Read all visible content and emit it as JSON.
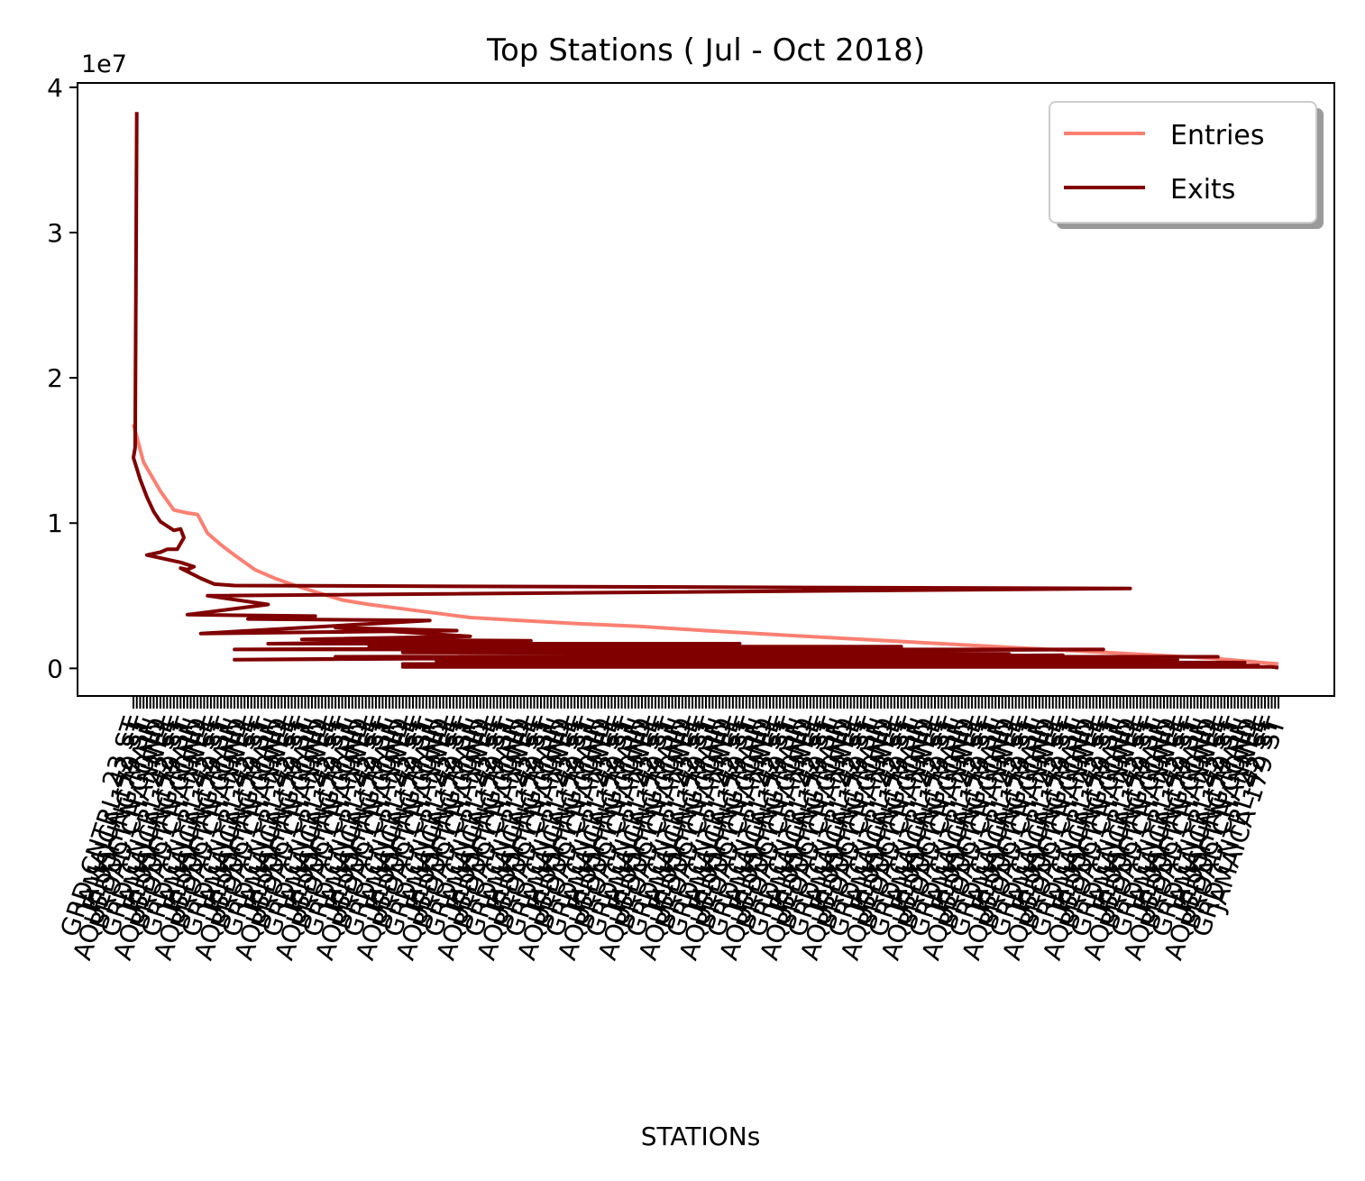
{
  "chart_data": {
    "type": "line",
    "title": "Top Stations ( Jul - Oct 2018)",
    "xlabel": "STATIONs",
    "ylabel": "",
    "y_offset_label": "1e7",
    "ylim": [
      -0.19,
      4.03
    ],
    "y_ticks": [
      0,
      1,
      2,
      3,
      4
    ],
    "y_unit_multiplier": 10000000,
    "x_tick_count": 340,
    "x_tick_labels_legible": [
      "23 ST",
      "34 ST-PENN STA",
      "GRD CNTRL-42 ST",
      "PATH NEW WTC",
      "JAMAICA 179 ST",
      "BROADWAY",
      "FLUSHING-MAIN",
      "EASTCHSTR/DYRE",
      "AQUEDUCT N.COND",
      "ROCKAWAY PARK B",
      "BROAD CHANNEL",
      "ORCHARD BEACH"
    ],
    "legend": {
      "position": "upper right",
      "entries": [
        "Entries",
        "Exits"
      ],
      "shadow": true
    },
    "grid": false,
    "series": [
      {
        "name": "Entries",
        "color": "#fa8072",
        "points": [
          [
            0,
            1.68
          ],
          [
            3,
            1.42
          ],
          [
            8,
            1.22
          ],
          [
            12,
            1.09
          ],
          [
            16,
            1.07
          ],
          [
            19,
            1.06
          ],
          [
            22,
            0.93
          ],
          [
            26,
            0.85
          ],
          [
            30,
            0.78
          ],
          [
            36,
            0.68
          ],
          [
            42,
            0.62
          ],
          [
            48,
            0.57
          ],
          [
            55,
            0.52
          ],
          [
            62,
            0.47
          ],
          [
            70,
            0.44
          ],
          [
            80,
            0.41
          ],
          [
            90,
            0.38
          ],
          [
            100,
            0.35
          ],
          [
            115,
            0.33
          ],
          [
            130,
            0.31
          ],
          [
            150,
            0.29
          ],
          [
            170,
            0.26
          ],
          [
            200,
            0.22
          ],
          [
            240,
            0.17
          ],
          [
            280,
            0.12
          ],
          [
            320,
            0.07
          ],
          [
            340,
            0.03
          ]
        ]
      },
      {
        "name": "Exits",
        "color": "#800000",
        "points": [
          [
            1,
            3.83
          ],
          [
            0.5,
            1.52
          ],
          [
            0,
            1.45
          ],
          [
            2,
            1.3
          ],
          [
            4,
            1.18
          ],
          [
            6,
            1.08
          ],
          [
            8,
            1.01
          ],
          [
            10,
            0.98
          ],
          [
            12,
            0.95
          ],
          [
            14,
            0.96
          ],
          [
            15,
            0.9
          ],
          [
            13,
            0.82
          ],
          [
            10,
            0.82
          ],
          [
            8,
            0.8
          ],
          [
            4,
            0.78
          ],
          [
            8,
            0.76
          ],
          [
            14,
            0.73
          ],
          [
            18,
            0.7
          ],
          [
            16,
            0.68
          ],
          [
            14,
            0.69
          ],
          [
            20,
            0.62
          ],
          [
            24,
            0.58
          ],
          [
            30,
            0.57
          ],
          [
            296,
            0.55
          ],
          [
            22,
            0.5
          ],
          [
            40,
            0.44
          ],
          [
            16,
            0.37
          ],
          [
            54,
            0.36
          ],
          [
            34,
            0.34
          ],
          [
            88,
            0.33
          ],
          [
            20,
            0.24
          ],
          [
            96,
            0.26
          ],
          [
            60,
            0.28
          ],
          [
            100,
            0.22
          ],
          [
            50,
            0.2
          ],
          [
            118,
            0.19
          ],
          [
            40,
            0.17
          ],
          [
            180,
            0.17
          ],
          [
            70,
            0.15
          ],
          [
            228,
            0.15
          ],
          [
            30,
            0.13
          ],
          [
            288,
            0.13
          ],
          [
            80,
            0.11
          ],
          [
            260,
            0.1
          ],
          [
            30,
            0.06
          ],
          [
            276,
            0.09
          ],
          [
            60,
            0.08
          ],
          [
            322,
            0.08
          ],
          [
            100,
            0.07
          ],
          [
            310,
            0.06
          ],
          [
            90,
            0.05
          ],
          [
            330,
            0.04
          ],
          [
            80,
            0.03
          ],
          [
            334,
            0.02
          ],
          [
            80,
            0.01
          ],
          [
            338,
            0.01
          ],
          [
            340,
            0.005
          ]
        ]
      }
    ]
  }
}
